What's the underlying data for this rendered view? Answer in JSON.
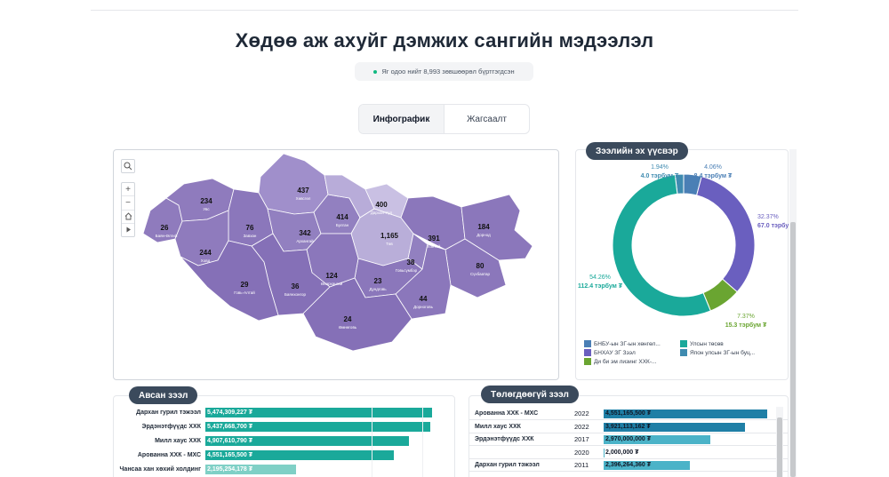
{
  "page": {
    "title": "Хөдөө аж ахуйг дэмжих сангийн мэдээлэл",
    "status": "Яг одоо нийт 8,993 зөвшөөрөл бүртгэгдсэн"
  },
  "tabs": [
    {
      "label": "Инфографик",
      "active": true
    },
    {
      "label": "Жагсаалт",
      "active": false
    }
  ],
  "map": {
    "regions": [
      {
        "count": "437",
        "name": "Хөвсгөл"
      },
      {
        "count": "234",
        "name": "Увс"
      },
      {
        "count": "26",
        "name": "Баян-Өлгий"
      },
      {
        "count": "244",
        "name": "Ховд"
      },
      {
        "count": "76",
        "name": "Завхан"
      },
      {
        "count": "342",
        "name": "Архангай"
      },
      {
        "count": "414",
        "name": "Булган"
      },
      {
        "count": "400",
        "name": "Дархан-Уул"
      },
      {
        "count": "1,165",
        "name": "Төв"
      },
      {
        "count": "391",
        "name": "Хэнтий"
      },
      {
        "count": "184",
        "name": "Дорнод"
      },
      {
        "count": "29",
        "name": "Говь-Алтай"
      },
      {
        "count": "36",
        "name": "Баянхонгор"
      },
      {
        "count": "124",
        "name": "Өвөрхангай"
      },
      {
        "count": "23",
        "name": "Дундговь"
      },
      {
        "count": "38",
        "name": "Говьсүмбэр"
      },
      {
        "count": "80",
        "name": "Сүхбаатар"
      },
      {
        "count": "44",
        "name": "Дорноговь"
      },
      {
        "count": "24",
        "name": "Өмнөговь"
      }
    ]
  },
  "sources": {
    "title": "Зээлийн эх үүсвэр",
    "legend": [
      {
        "label": "БНБУ-ын ЗГ-ын хөнгөл...",
        "color": "#4a7fb5"
      },
      {
        "label": "Улсын төсөв",
        "color": "#1aa99a"
      },
      {
        "label": "БНХАУ ЗГ Зээл",
        "color": "#6a5fbf"
      },
      {
        "label": "Япон улсын ЗГ-ын буц...",
        "color": "#3f8bb0"
      },
      {
        "label": "Ди би эм лизинг ХХК-...",
        "color": "#6aa531"
      }
    ]
  },
  "chart_data": {
    "type": "pie",
    "title": "Зээлийн эх үүсвэр",
    "slices": [
      {
        "name": "БНБУ-ын ЗГ-ын хөнгөл...",
        "percent": 4.06,
        "amount": "8.4 тэрбум ₮",
        "color": "#4a7fb5"
      },
      {
        "name": "БНХАУ ЗГ Зээл",
        "percent": 32.37,
        "amount": "67.0 тэрбум ₮",
        "color": "#6a5fbf"
      },
      {
        "name": "Ди би эм лизинг ХХК-...",
        "percent": 7.37,
        "amount": "15.3 тэрбум ₮",
        "color": "#6aa531"
      },
      {
        "name": "Улсын төсөв",
        "percent": 54.26,
        "amount": "112.4 тэрбум ₮",
        "color": "#1aa99a"
      },
      {
        "name": "Япон улсын ЗГ-ын буц...",
        "percent": 1.94,
        "amount": "4.0 тэрбум ₮",
        "color": "#3f8bb0"
      }
    ]
  },
  "loans": {
    "title": "Авсан зээл",
    "rows": [
      {
        "name": "Дархан гурил тэжээл",
        "value": "5,474,309,227 ₮",
        "amount": 5474309227
      },
      {
        "name": "Эрдэнэтфүүдс ХХК",
        "value": "5,437,668,700 ₮",
        "amount": 5437668700
      },
      {
        "name": "Милл хаус ХХК",
        "value": "4,907,610,790 ₮",
        "amount": 4907610790
      },
      {
        "name": "Арованна ХХК - МХС",
        "value": "4,551,165,500 ₮",
        "amount": 4551165500
      },
      {
        "name": "Чансаа хан хөхий холдинг",
        "value": "2,195,254,178 ₮",
        "amount": 2195254178
      }
    ]
  },
  "unpaid": {
    "title": "Төлөгдөөгүй зээл",
    "rows": [
      {
        "name": "Арованна ХХК - МХС",
        "year": "2022",
        "value": "4,551,165,500 ₮",
        "amount": 4551165500,
        "dark": true
      },
      {
        "name": "Милл хаус ХХК",
        "year": "2022",
        "value": "3,921,113,162 ₮",
        "amount": 3921113162,
        "dark": true
      },
      {
        "name": "Эрдэнэтфүүдс ХХК",
        "year": "2017",
        "value": "2,970,000,000 ₮",
        "amount": 2970000000,
        "dark": false
      },
      {
        "name": "",
        "year": "2020",
        "value": "2,000,000 ₮",
        "amount": 2000000,
        "dark": false
      },
      {
        "name": "Дархан гурил тэжээл",
        "year": "2011",
        "value": "2,396,264,360 ₮",
        "amount": 2396264360,
        "dark": false
      }
    ]
  }
}
